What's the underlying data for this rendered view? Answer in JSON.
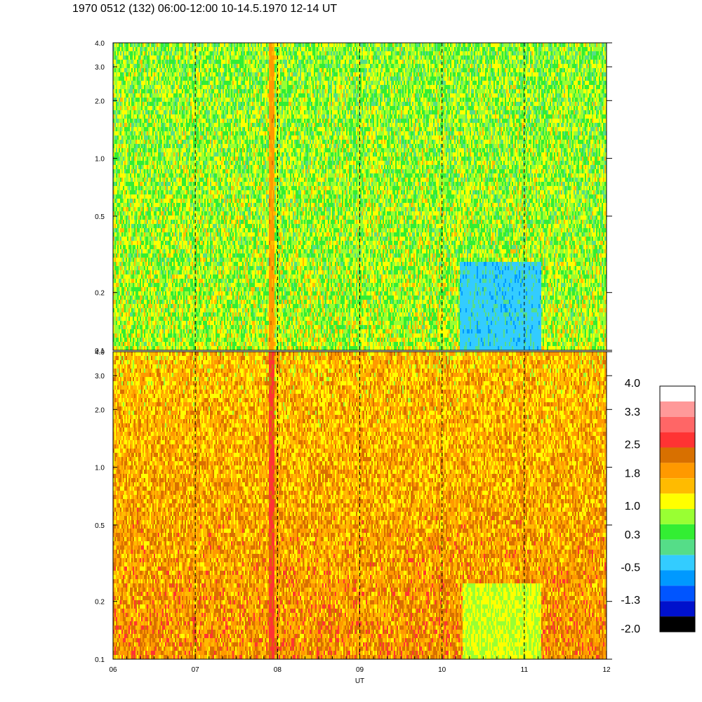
{
  "title": "1970 0512 (132) 06:00-12:00 10-14.5.1970  12-14 UT",
  "chart_data": {
    "type": "heatmap",
    "panels": [
      {
        "name": "",
        "y_scale": "log",
        "ylim": [
          0.1,
          4.0
        ],
        "y_ticks": [
          {
            "v": 0.1,
            "label": "0.1"
          },
          {
            "v": 0.2,
            "label": "0.2"
          },
          {
            "v": 0.5,
            "label": "0.5"
          },
          {
            "v": 1.0,
            "label": "1.0"
          },
          {
            "v": 2.0,
            "label": "2.0"
          },
          {
            "v": 3.0,
            "label": "3.0"
          },
          {
            "v": 4.0,
            "label": "4.0"
          }
        ],
        "baseline_level": 0.8,
        "features": [
          {
            "x_start": 7.88,
            "x_end": 7.95,
            "level": 1.9,
            "note": ""
          },
          {
            "x_start": 10.2,
            "x_end": 11.2,
            "y_max": 0.3,
            "level": -0.3,
            "note": ""
          }
        ]
      },
      {
        "name": "",
        "y_scale": "log",
        "ylim": [
          0.1,
          4.0
        ],
        "y_ticks": [
          {
            "v": 0.1,
            "label": "0.1"
          },
          {
            "v": 0.2,
            "label": "0.2"
          },
          {
            "v": 0.5,
            "label": "0.5"
          },
          {
            "v": 1.0,
            "label": "1.0"
          },
          {
            "v": 2.0,
            "label": "2.0"
          },
          {
            "v": 3.0,
            "label": "3.0"
          },
          {
            "v": 4.0,
            "label": "4.0"
          }
        ],
        "baseline_level": 1.8,
        "features": [
          {
            "x_start": 7.88,
            "x_end": 7.95,
            "level": 2.6,
            "note": ""
          },
          {
            "x_start": 10.25,
            "x_end": 11.2,
            "y_max": 0.25,
            "level": 1.0,
            "note": ""
          }
        ]
      }
    ],
    "x": {
      "label": "UT",
      "range": [
        6,
        12
      ],
      "ticks": [
        {
          "v": 6,
          "label": "06"
        },
        {
          "v": 7,
          "label": "07"
        },
        {
          "v": 8,
          "label": "08"
        },
        {
          "v": 9,
          "label": "09"
        },
        {
          "v": 10,
          "label": "10"
        },
        {
          "v": 11,
          "label": "11"
        },
        {
          "v": 12,
          "label": "12"
        }
      ],
      "minor_step": 0.1667,
      "dashed_gridlines": [
        7,
        8,
        9,
        10,
        11
      ]
    },
    "colorbar": {
      "labels": [
        "4.0",
        "3.3",
        "2.5",
        "1.8",
        "1.0",
        "0.3",
        "-0.5",
        "-1.3",
        "-2.0"
      ],
      "label_values": [
        4.0,
        3.3,
        2.5,
        1.8,
        1.0,
        0.3,
        -0.5,
        -1.3,
        -2.0
      ],
      "colors": [
        "#ffffff",
        "#ff9999",
        "#ff6666",
        "#ff3333",
        "#d87000",
        "#ff9900",
        "#ffbb00",
        "#ffff00",
        "#99ff33",
        "#33ee33",
        "#55dd88",
        "#33ccff",
        "#0099ff",
        "#0055ff",
        "#0011cc",
        "#000000"
      ],
      "range": [
        -2.0,
        4.0
      ]
    }
  }
}
